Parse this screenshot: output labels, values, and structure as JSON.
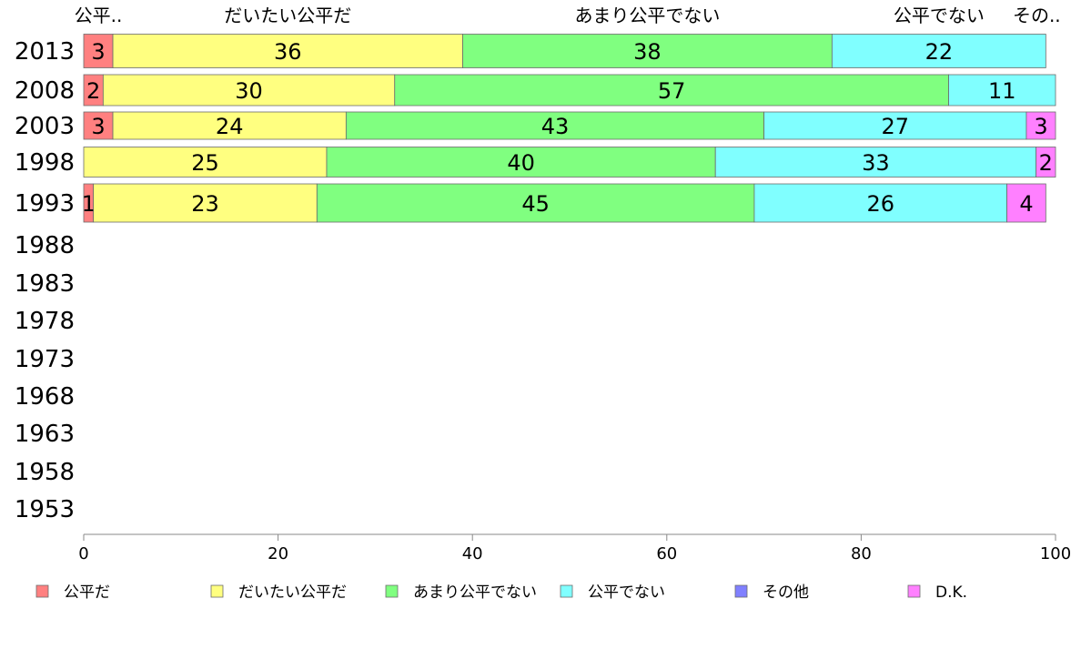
{
  "chart_data": {
    "type": "bar",
    "orientation": "horizontal",
    "stacked": true,
    "series": [
      {
        "name": "公平だ",
        "color": "#ff8080",
        "values": [
          3,
          2,
          3,
          0,
          1,
          null,
          null,
          null,
          null,
          null,
          null,
          null,
          null
        ],
        "top_label": "公平.."
      },
      {
        "name": "だいたい公平だ",
        "color": "#ffff80",
        "values": [
          36,
          30,
          24,
          25,
          23,
          null,
          null,
          null,
          null,
          null,
          null,
          null,
          null
        ],
        "top_label": "だいたい公平だ"
      },
      {
        "name": "あまり公平でない",
        "color": "#80ff80",
        "values": [
          38,
          57,
          43,
          40,
          45,
          null,
          null,
          null,
          null,
          null,
          null,
          null,
          null
        ],
        "top_label": "あまり公平でない"
      },
      {
        "name": "公平でない",
        "color": "#80ffff",
        "values": [
          22,
          11,
          27,
          33,
          26,
          null,
          null,
          null,
          null,
          null,
          null,
          null,
          null
        ],
        "top_label": "公平でない"
      },
      {
        "name": "その他",
        "color": "#8080ff",
        "values": [
          0,
          0,
          0,
          0,
          0,
          null,
          null,
          null,
          null,
          null,
          null,
          null,
          null
        ],
        "top_label": "その.."
      },
      {
        "name": "D.K.",
        "color": "#ff80ff",
        "values": [
          0,
          0,
          3,
          2,
          4,
          null,
          null,
          null,
          null,
          null,
          null,
          null,
          null
        ],
        "top_label": ""
      }
    ],
    "categories": [
      "2013",
      "2008",
      "2003",
      "1998",
      "1993",
      "1988",
      "1983",
      "1978",
      "1973",
      "1968",
      "1963",
      "1958",
      "1953"
    ],
    "xlim": [
      0,
      100
    ],
    "xticks": [
      0,
      20,
      40,
      60,
      80,
      100
    ],
    "legend_position": "bottom",
    "grid": false
  }
}
